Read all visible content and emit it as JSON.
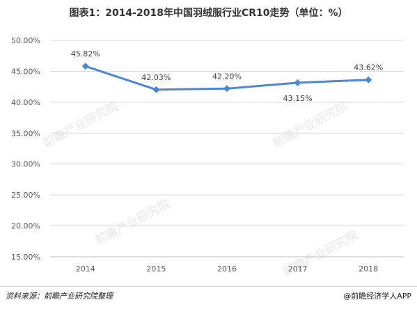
{
  "title": "图表1：2014-2018年中国羽绒服行业CR10走势（单位：%）",
  "footer": {
    "source": "资料来源：前瞻产业研究院整理",
    "brand": "@前瞻经济学人APP"
  },
  "watermark": "前瞻产业研究院",
  "colors": {
    "line": "#4a86d4",
    "grid": "#d9d9d9",
    "axis_text": "#595959",
    "label_text": "#404040"
  },
  "chart_data": {
    "type": "line",
    "title": "图表1：2014-2018年中国羽绒服行业CR10走势（单位：%）",
    "categories": [
      "2014",
      "2015",
      "2016",
      "2017",
      "2018"
    ],
    "series": [
      {
        "values": [
          45.82,
          42.03,
          42.2,
          43.15,
          43.62
        ]
      }
    ],
    "data_labels": [
      "45.82%",
      "42.03%",
      "42.20%",
      "43.15%",
      "43.62%"
    ],
    "ylim": [
      15,
      50
    ],
    "yticks": [
      15,
      20,
      25,
      30,
      35,
      40,
      45,
      50
    ],
    "ytick_labels": [
      "15.00%",
      "20.00%",
      "25.00%",
      "30.00%",
      "35.00%",
      "40.00%",
      "45.00%",
      "50.00%"
    ],
    "grid": true,
    "legend": "none"
  }
}
